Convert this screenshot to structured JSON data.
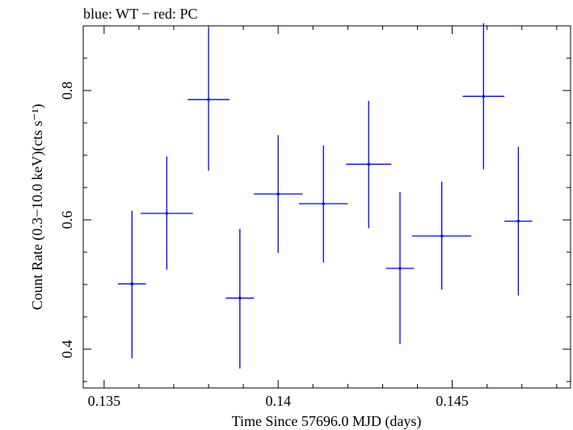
{
  "chart_data": {
    "type": "scatter",
    "title": "blue: WT − red: PC",
    "xlabel": "Time Since 57696.0 MJD (days)",
    "ylabel": "Count Rate (0.3−10.0 keV)(cts s⁻¹)",
    "xlim": [
      0.1344,
      0.1484
    ],
    "ylim": [
      0.34,
      0.9
    ],
    "x_ticks": [
      {
        "value": 0.135,
        "label": "0.135"
      },
      {
        "value": 0.14,
        "label": "0.14"
      },
      {
        "value": 0.145,
        "label": "0.145"
      }
    ],
    "y_ticks": [
      {
        "value": 0.4,
        "label": "0.4"
      },
      {
        "value": 0.6,
        "label": "0.6"
      },
      {
        "value": 0.8,
        "label": "0.8"
      }
    ],
    "grid": false,
    "series": [
      {
        "color": "#0000ee",
        "points": [
          {
            "x": 0.1358,
            "y": 0.501,
            "xerr": 0.0004,
            "yerr_low": 0.115,
            "yerr_high": 0.113
          },
          {
            "x": 0.1368,
            "y": 0.61,
            "xerr": 0.00075,
            "yerr_low": 0.087,
            "yerr_high": 0.088
          },
          {
            "x": 0.138,
            "y": 0.786,
            "xerr": 0.0006,
            "yerr_low": 0.11,
            "yerr_high": 0.11
          },
          {
            "x": 0.1389,
            "y": 0.479,
            "xerr": 0.0004,
            "yerr_low": 0.109,
            "yerr_high": 0.107
          },
          {
            "x": 0.14,
            "y": 0.64,
            "xerr": 0.0007,
            "yerr_low": 0.091,
            "yerr_high": 0.091
          },
          {
            "x": 0.1413,
            "y": 0.625,
            "xerr": 0.0007,
            "yerr_low": 0.091,
            "yerr_high": 0.09
          },
          {
            "x": 0.1426,
            "y": 0.686,
            "xerr": 0.00065,
            "yerr_low": 0.099,
            "yerr_high": 0.098
          },
          {
            "x": 0.1435,
            "y": 0.525,
            "xerr": 0.0004,
            "yerr_low": 0.117,
            "yerr_high": 0.118
          },
          {
            "x": 0.1447,
            "y": 0.575,
            "xerr": 0.00085,
            "yerr_low": 0.083,
            "yerr_high": 0.084
          },
          {
            "x": 0.1459,
            "y": 0.791,
            "xerr": 0.0006,
            "yerr_low": 0.113,
            "yerr_high": 0.113
          },
          {
            "x": 0.1469,
            "y": 0.598,
            "xerr": 0.0004,
            "yerr_low": 0.115,
            "yerr_high": 0.115
          }
        ]
      }
    ]
  }
}
